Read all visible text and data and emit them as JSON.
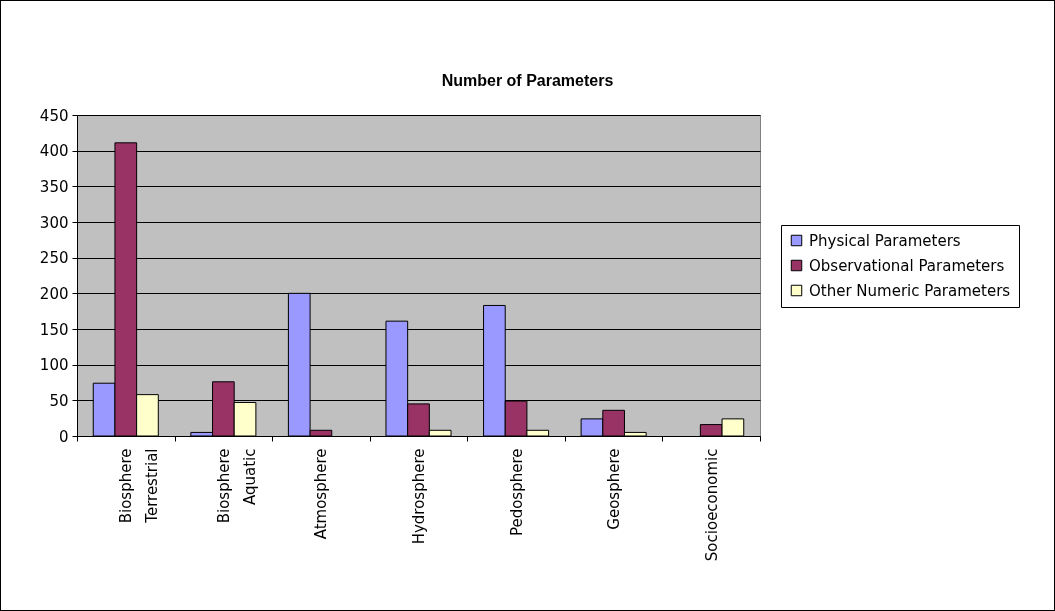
{
  "chart_data": {
    "type": "bar",
    "title": "Number of Parameters",
    "categories": [
      "Biosphere Terrestrial",
      "Biosphere Aquatic",
      "Atmosphere",
      "Hydrosphere",
      "Pedosphere",
      "Geosphere",
      "Socioeconomic"
    ],
    "series": [
      {
        "name": "Physical Parameters",
        "color": "#9999ff",
        "values": [
          74,
          5,
          200,
          161,
          183,
          24,
          null
        ]
      },
      {
        "name": "Observational Parameters",
        "color": "#993366",
        "values": [
          411,
          76,
          8,
          45,
          49,
          36,
          16
        ]
      },
      {
        "name": "Other Numeric Parameters",
        "color": "#ffffcc",
        "values": [
          58,
          47,
          null,
          8,
          8,
          5,
          24
        ]
      }
    ],
    "ylim": [
      0,
      450
    ],
    "yticks": [
      0,
      50,
      100,
      150,
      200,
      250,
      300,
      350,
      400,
      450
    ],
    "grid": "y",
    "legend": "right"
  }
}
